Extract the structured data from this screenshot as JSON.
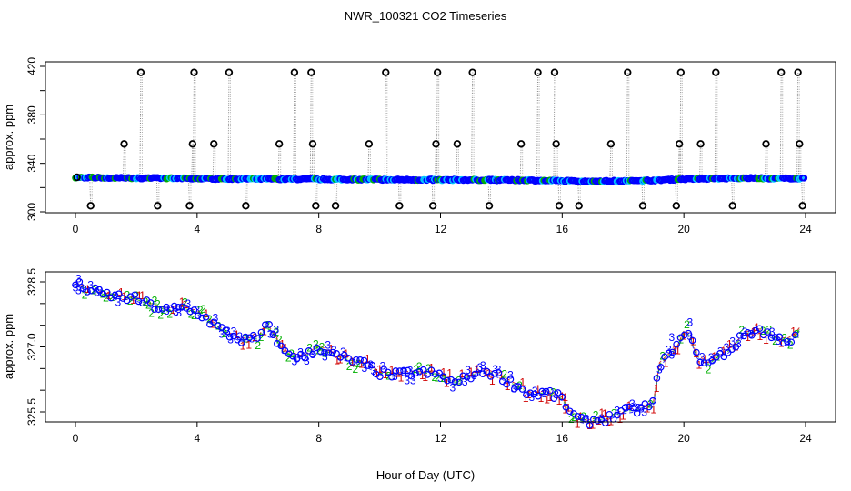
{
  "title": "NWR_100321  CO2 Timeseries",
  "xlabel": "Hour of Day (UTC)",
  "colors": {
    "blue": "#0000ff",
    "green": "#00b000",
    "red": "#d00000",
    "cyan": "#00c8ff",
    "black": "#000000"
  },
  "chart_data": [
    {
      "type": "scatter",
      "ylabel": "approx. ppm",
      "xlim": [
        0,
        24
      ],
      "ylim": [
        300,
        420
      ],
      "x_ticks": [
        0,
        4,
        8,
        12,
        16,
        20,
        24
      ],
      "y_ticks": [
        300,
        340,
        380,
        420
      ],
      "baseline": [
        [
          0,
          328.5
        ],
        [
          1,
          328.0
        ],
        [
          2,
          327.8
        ],
        [
          3,
          327.7
        ],
        [
          4,
          327.4
        ],
        [
          5,
          327.2
        ],
        [
          6,
          327.1
        ],
        [
          7,
          327.0
        ],
        [
          8,
          326.9
        ],
        [
          9,
          326.8
        ],
        [
          10,
          326.6
        ],
        [
          11,
          326.5
        ],
        [
          12,
          326.4
        ],
        [
          13,
          326.4
        ],
        [
          14,
          326.2
        ],
        [
          15,
          326.0
        ],
        [
          16,
          325.5
        ],
        [
          17,
          325.4
        ],
        [
          18,
          325.5
        ],
        [
          19,
          326.0
        ],
        [
          20,
          327.0
        ],
        [
          21,
          327.3
        ],
        [
          22,
          327.8
        ],
        [
          23,
          327.6
        ],
        [
          24,
          327.6
        ]
      ],
      "outliers": [
        [
          0.05,
          328.5
        ],
        [
          0.5,
          305
        ],
        [
          1.6,
          356
        ],
        [
          2.15,
          415
        ],
        [
          2.7,
          305
        ],
        [
          3.75,
          305
        ],
        [
          3.85,
          356
        ],
        [
          3.9,
          415
        ],
        [
          4.55,
          356
        ],
        [
          5.05,
          415
        ],
        [
          5.6,
          305
        ],
        [
          6.7,
          356
        ],
        [
          7.2,
          415
        ],
        [
          7.75,
          415
        ],
        [
          7.8,
          356
        ],
        [
          7.9,
          305
        ],
        [
          8.55,
          305
        ],
        [
          9.65,
          356
        ],
        [
          10.2,
          415
        ],
        [
          10.65,
          305
        ],
        [
          11.75,
          305
        ],
        [
          11.85,
          356
        ],
        [
          11.9,
          415
        ],
        [
          12.55,
          356
        ],
        [
          13.05,
          415
        ],
        [
          13.6,
          305
        ],
        [
          14.65,
          356
        ],
        [
          15.2,
          415
        ],
        [
          15.75,
          415
        ],
        [
          15.8,
          356
        ],
        [
          15.9,
          305
        ],
        [
          16.55,
          305
        ],
        [
          17.6,
          356
        ],
        [
          18.15,
          415
        ],
        [
          18.65,
          305
        ],
        [
          19.75,
          305
        ],
        [
          19.85,
          356
        ],
        [
          19.9,
          415
        ],
        [
          20.55,
          356
        ],
        [
          21.05,
          415
        ],
        [
          21.6,
          305
        ],
        [
          22.7,
          356
        ],
        [
          23.2,
          415
        ],
        [
          23.75,
          415
        ],
        [
          23.8,
          356
        ],
        [
          23.9,
          305
        ]
      ]
    },
    {
      "type": "scatter",
      "ylabel": "approx. ppm",
      "xlim": [
        0,
        24
      ],
      "ylim": [
        325.5,
        328.5
      ],
      "x_ticks": [
        0,
        4,
        8,
        12,
        16,
        20,
        24
      ],
      "y_ticks": [
        325.5,
        327.0,
        328.5
      ],
      "y_tick_labels": [
        "325.5",
        "327.0",
        "328.5"
      ],
      "series_markers": [
        "1",
        "2",
        "3"
      ],
      "trend": [
        [
          0,
          328.45
        ],
        [
          0.5,
          328.3
        ],
        [
          1,
          328.2
        ],
        [
          1.5,
          328.15
        ],
        [
          2,
          328.1
        ],
        [
          2.5,
          327.95
        ],
        [
          3,
          327.85
        ],
        [
          3.5,
          327.9
        ],
        [
          4,
          327.8
        ],
        [
          4.5,
          327.55
        ],
        [
          5,
          327.3
        ],
        [
          5.5,
          327.15
        ],
        [
          6,
          327.2
        ],
        [
          6.3,
          327.5
        ],
        [
          6.6,
          327.2
        ],
        [
          6.8,
          326.9
        ],
        [
          7,
          326.85
        ],
        [
          7.5,
          326.75
        ],
        [
          8,
          327.0
        ],
        [
          8.5,
          326.8
        ],
        [
          9,
          326.7
        ],
        [
          9.5,
          326.6
        ],
        [
          10,
          326.4
        ],
        [
          10.5,
          326.35
        ],
        [
          11,
          326.4
        ],
        [
          11.5,
          326.4
        ],
        [
          12,
          326.35
        ],
        [
          12.5,
          326.15
        ],
        [
          13,
          326.35
        ],
        [
          13.5,
          326.45
        ],
        [
          14,
          326.3
        ],
        [
          14.5,
          326.1
        ],
        [
          15,
          325.9
        ],
        [
          15.5,
          325.95
        ],
        [
          16,
          325.8
        ],
        [
          16.3,
          325.45
        ],
        [
          16.7,
          325.25
        ],
        [
          17,
          325.3
        ],
        [
          17.5,
          325.35
        ],
        [
          18,
          325.5
        ],
        [
          18.5,
          325.55
        ],
        [
          19,
          325.7
        ],
        [
          19.2,
          326.6
        ],
        [
          19.5,
          326.8
        ],
        [
          19.8,
          327.0
        ],
        [
          20.1,
          327.5
        ],
        [
          20.4,
          326.8
        ],
        [
          20.8,
          326.6
        ],
        [
          21.2,
          326.8
        ],
        [
          21.5,
          326.9
        ],
        [
          22,
          327.3
        ],
        [
          22.5,
          327.4
        ],
        [
          23,
          327.2
        ],
        [
          23.5,
          327.15
        ],
        [
          23.8,
          327.4
        ]
      ],
      "spikes": [
        [
          0.1,
          0.15,
          "3"
        ],
        [
          3.6,
          0.1,
          "1"
        ],
        [
          6.6,
          0.2,
          "3"
        ],
        [
          8.2,
          -0.15,
          "3"
        ],
        [
          12.1,
          0.1,
          "1"
        ],
        [
          16.1,
          0.15,
          "1"
        ],
        [
          19.6,
          0.35,
          "3"
        ],
        [
          20.2,
          0.3,
          "3"
        ],
        [
          17.3,
          0.15,
          "1"
        ]
      ]
    }
  ]
}
